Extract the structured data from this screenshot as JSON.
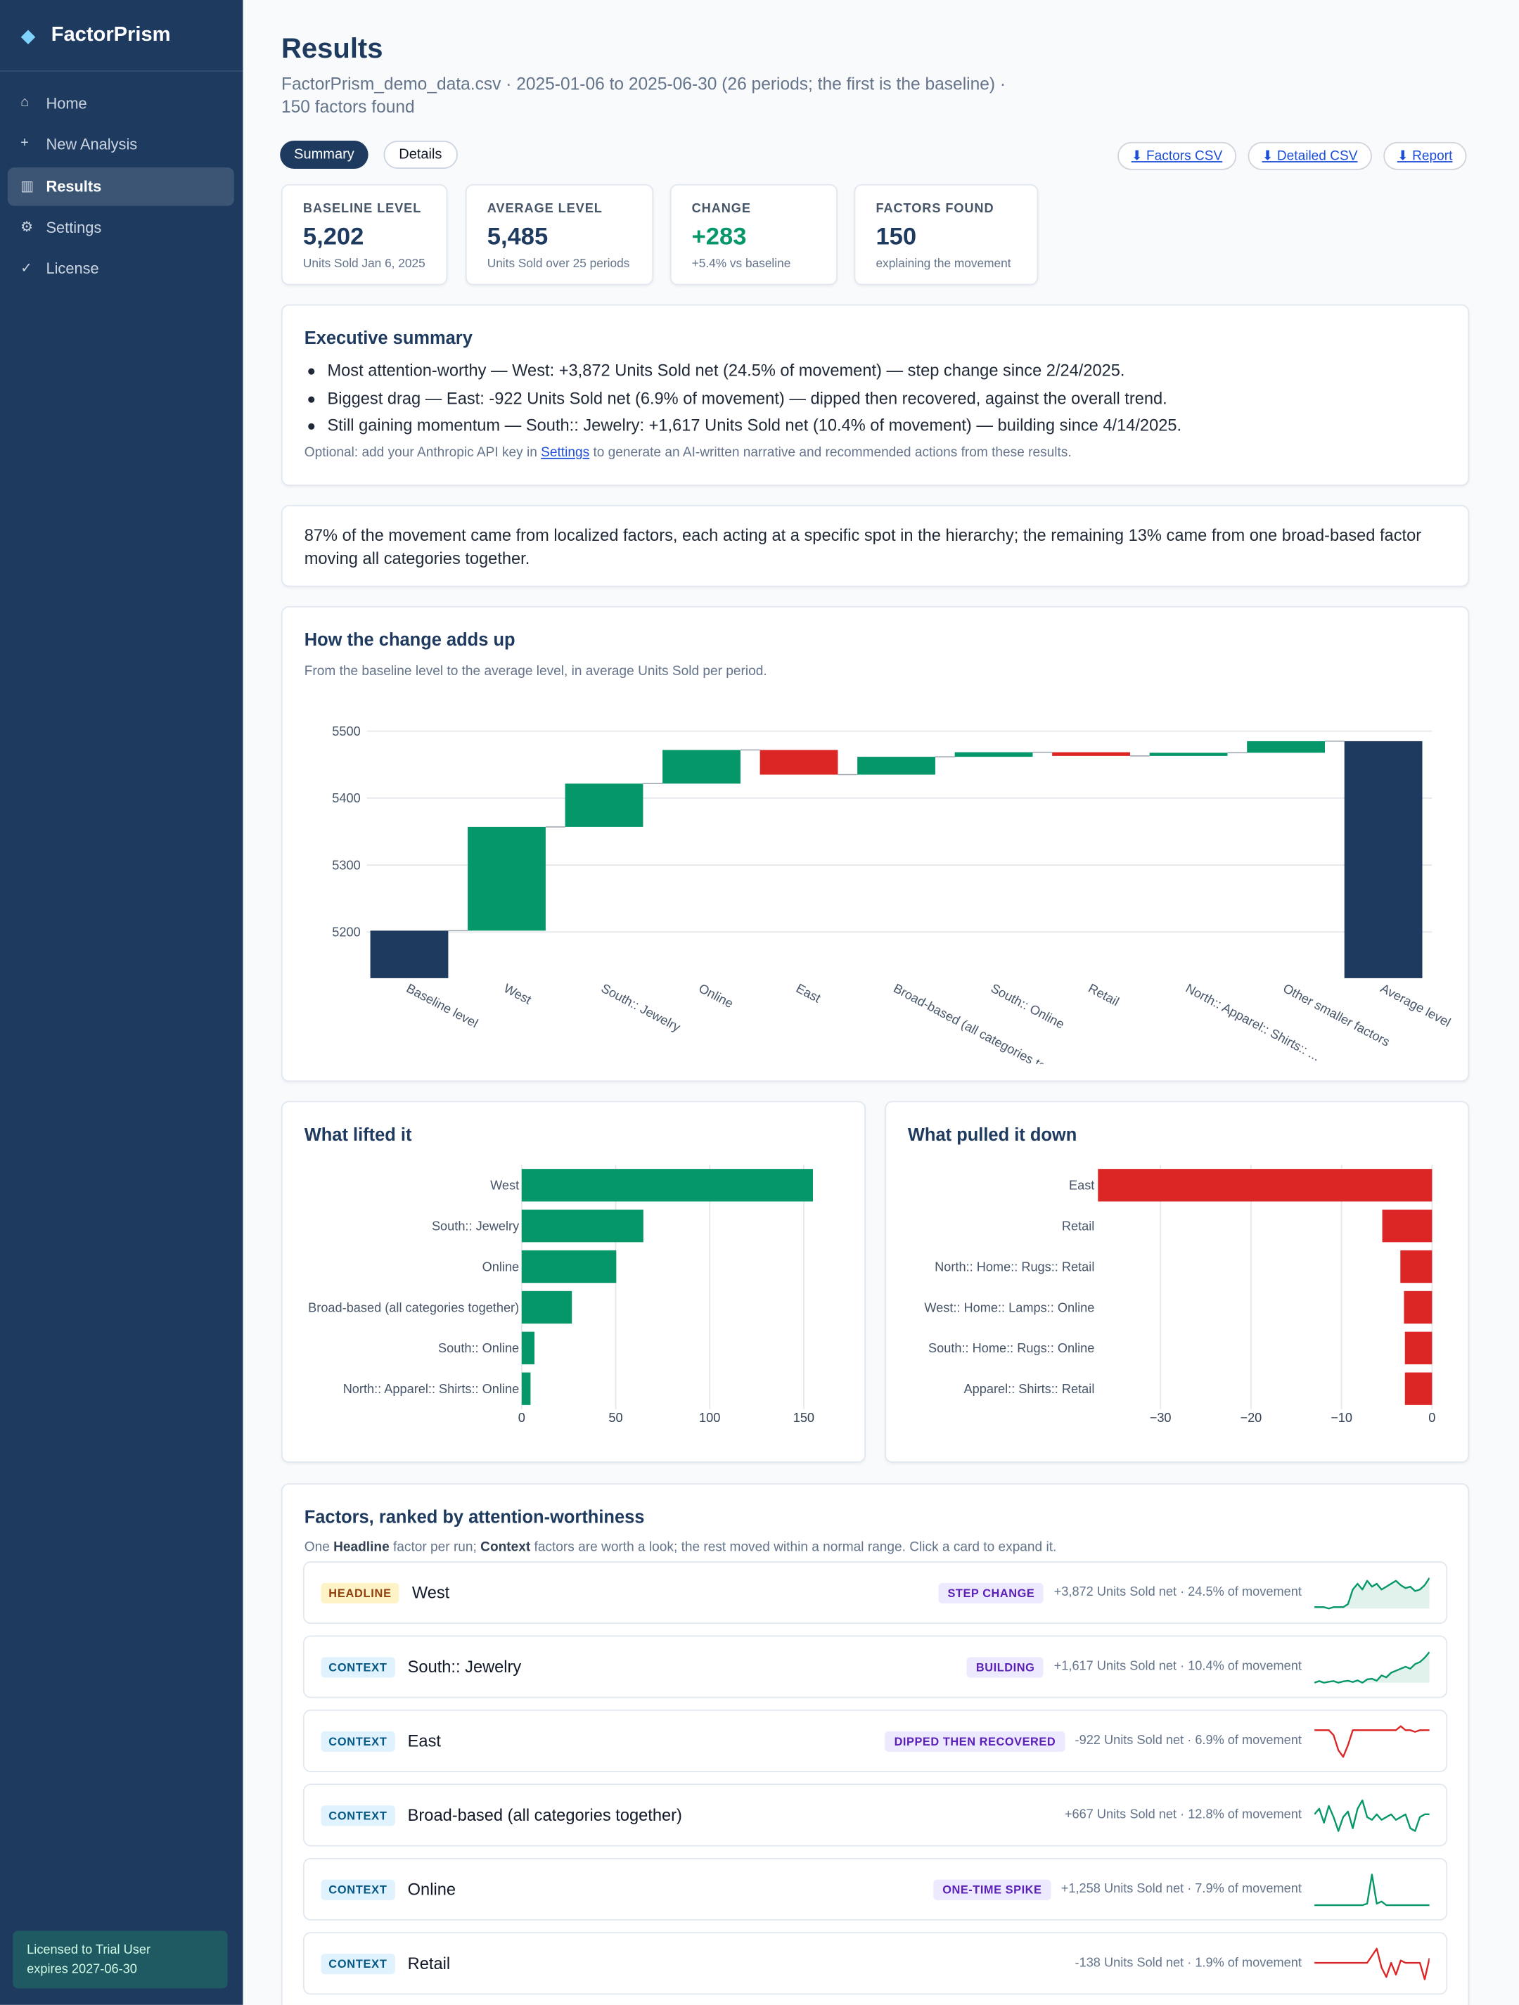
{
  "sidebar": {
    "brand": "FactorPrism",
    "nav": [
      {
        "icon": "⌂",
        "label": "Home"
      },
      {
        "icon": "+",
        "label": "New Analysis"
      },
      {
        "icon": "▥",
        "label": "Results",
        "active": true
      },
      {
        "icon": "⚙",
        "label": "Settings"
      },
      {
        "icon": "✓",
        "label": "License"
      }
    ],
    "license": [
      "Licensed to Trial User",
      "expires 2027-06-30"
    ]
  },
  "header": {
    "title": "Results",
    "subtitle": "FactorPrism_demo_data.csv · 2025-01-06 to 2025-06-30 (26 periods; the first is the baseline) · 150 factors found"
  },
  "tabs": [
    {
      "label": "Summary",
      "active": true
    },
    {
      "label": "Details"
    }
  ],
  "downloads": [
    "⬇ Factors CSV",
    "⬇ Detailed CSV",
    "⬇ Report"
  ],
  "kpis": [
    {
      "label": "BASELINE LEVEL",
      "value": "5,202",
      "note": "Units Sold Jan 6, 2025"
    },
    {
      "label": "AVERAGE LEVEL",
      "value": "5,485",
      "note": "Units Sold over 25 periods"
    },
    {
      "label": "CHANGE",
      "value": "+283",
      "note": "+5.4% vs baseline",
      "color": "#059669"
    },
    {
      "label": "FACTORS FOUND",
      "value": "150",
      "note": "explaining the movement"
    }
  ],
  "summary": {
    "title": "Executive summary",
    "bullets": [
      "Most attention-worthy — West: +3,872 Units Sold net (24.5% of movement) — step change since 2/24/2025.",
      "Biggest drag — East: -922 Units Sold net (6.9% of movement) — dipped then recovered, against the overall trend.",
      "Still gaining momentum — South:: Jewelry: +1,617 Units Sold net (10.4% of movement) — building since 4/14/2025."
    ],
    "note": [
      "Optional: add your Anthropic API key in ",
      "Settings",
      " to generate an AI-written narrative and recommended actions from these results."
    ]
  },
  "insight": "87% of the movement came from localized factors, each acting at a specific spot in the hierarchy; the remaining 13% came from one broad-based factor moving all categories together.",
  "chart_data": [
    {
      "type": "waterfall",
      "title": "How the change adds up",
      "subtitle": "From the baseline level to the average level, in average Units Sold per period.",
      "categories": [
        "Baseline level",
        "West",
        "South:: Jewelry",
        "Online",
        "East",
        "Broad-based (all categories together)",
        "South:: Online",
        "Retail",
        "North:: Apparel:: Shirts:: ...",
        "Other smaller factors",
        "Average level"
      ],
      "values": [
        5202,
        154.9,
        64.7,
        50.3,
        -36.9,
        26.7,
        6.8,
        -5.5,
        4.7,
        17.3,
        5485
      ],
      "ylim": [
        5131,
        5513
      ],
      "yticks": [
        5200,
        5300,
        5400,
        5500
      ],
      "grid": true,
      "colors": {
        "total": "#1e3a5f",
        "increase": "#059669",
        "decrease": "#dc2626"
      }
    },
    {
      "type": "hbar",
      "title": "What lifted it",
      "categories": [
        "West",
        "South:: Jewelry",
        "Online",
        "Broad-based (all categories together)",
        "South:: Online",
        "North:: Apparel:: Shirts:: Online"
      ],
      "values": [
        154.9,
        64.7,
        50.3,
        26.7,
        6.8,
        4.7
      ],
      "color": "#059669",
      "xlim": [
        0,
        170
      ],
      "xticks": [
        0,
        50,
        100,
        150
      ],
      "grid": true
    },
    {
      "type": "hbar",
      "title": "What pulled it down",
      "categories": [
        "East",
        "Retail",
        "North:: Home:: Rugs:: Retail",
        "West:: Home:: Lamps:: Online",
        "South:: Home:: Rugs:: Online",
        "Apparel:: Shirts:: Retail"
      ],
      "values": [
        -36.9,
        -5.5,
        -3.5,
        -3.1,
        -3.0,
        -3.0
      ],
      "color": "#dc2626",
      "xlim": [
        -37,
        0
      ],
      "xticks": [
        {
          "value": -30,
          "label": "−30"
        },
        {
          "value": -20,
          "label": "−20"
        },
        {
          "value": -10,
          "label": "−10"
        },
        0
      ],
      "grid": true
    }
  ],
  "factors": {
    "title": "Factors, ranked by attention-worthiness",
    "intro": [
      "One ",
      "Headline",
      " factor per run; ",
      "Context",
      " factors are worth a look; the rest moved within a normal range. Click a card to expand it."
    ],
    "items": [
      {
        "badge": "HEADLINE",
        "name": "West",
        "pattern": "STEP CHANGE",
        "stat": "+3,872 Units Sold net · 24.5% of movement",
        "color": "#059669",
        "area": true,
        "spark": [
          0,
          0,
          0,
          -0.05,
          0,
          0,
          0,
          0.1,
          0.6,
          0.8,
          0.6,
          0.9,
          0.7,
          0.8,
          0.6,
          0.7,
          0.8,
          0.9,
          0.75,
          0.65,
          0.7,
          0.55,
          0.6,
          0.75,
          1
        ]
      },
      {
        "badge": "CONTEXT",
        "name": "South:: Jewelry",
        "pattern": "BUILDING",
        "stat": "+1,617 Units Sold net · 10.4% of movement",
        "color": "#059669",
        "area": true,
        "spark": [
          0,
          0.05,
          0,
          0.03,
          0.05,
          0,
          0.04,
          0.06,
          0.02,
          0.07,
          0,
          0.1,
          0.12,
          0.06,
          0.22,
          0.16,
          0.3,
          0.36,
          0.42,
          0.48,
          0.42,
          0.56,
          0.62,
          0.75,
          0.92
        ]
      },
      {
        "badge": "CONTEXT",
        "name": "East",
        "pattern": "DIPPED THEN RECOVERED",
        "stat": "-922 Units Sold net · 6.9% of movement",
        "color": "#dc2626",
        "spark": [
          0,
          0,
          0,
          0,
          -0.15,
          -0.6,
          -0.8,
          -0.45,
          0,
          0,
          0,
          0,
          0,
          0,
          0,
          0,
          0,
          0,
          0.12,
          0,
          0,
          -0.05,
          0,
          0,
          0
        ]
      },
      {
        "badge": "CONTEXT",
        "name": "Broad-based (all categories together)",
        "stat": "+667 Units Sold net · 12.8% of movement",
        "color": "#059669",
        "spark": [
          0.3,
          0.5,
          0,
          0.6,
          0.2,
          -0.3,
          0.2,
          0.4,
          -0.2,
          0.5,
          0.8,
          0.2,
          0.1,
          0.3,
          0.1,
          0.2,
          0.3,
          0.1,
          0.2,
          0.3,
          -0.2,
          -0.3,
          0.2,
          0.3,
          0.3
        ]
      },
      {
        "badge": "CONTEXT",
        "name": "Online",
        "pattern": "ONE-TIME SPIKE",
        "stat": "+1,258 Units Sold net · 7.9% of movement",
        "color": "#059669",
        "spark": [
          0,
          0,
          0,
          0,
          0,
          0,
          0,
          0,
          0,
          0,
          0,
          0.05,
          1,
          0.05,
          0.12,
          0,
          0,
          0,
          0,
          0,
          0,
          0,
          0,
          0,
          0
        ]
      },
      {
        "badge": "CONTEXT",
        "name": "Retail",
        "stat": "-138 Units Sold net · 1.9% of movement",
        "color": "#dc2626",
        "spark": [
          0,
          0,
          0,
          0,
          0,
          0,
          0,
          0,
          0,
          0,
          0,
          0,
          0.3,
          0.6,
          -0.2,
          -0.6,
          0,
          -0.5,
          0.1,
          0,
          0,
          0,
          0,
          -0.7,
          0.2
        ]
      }
    ]
  }
}
